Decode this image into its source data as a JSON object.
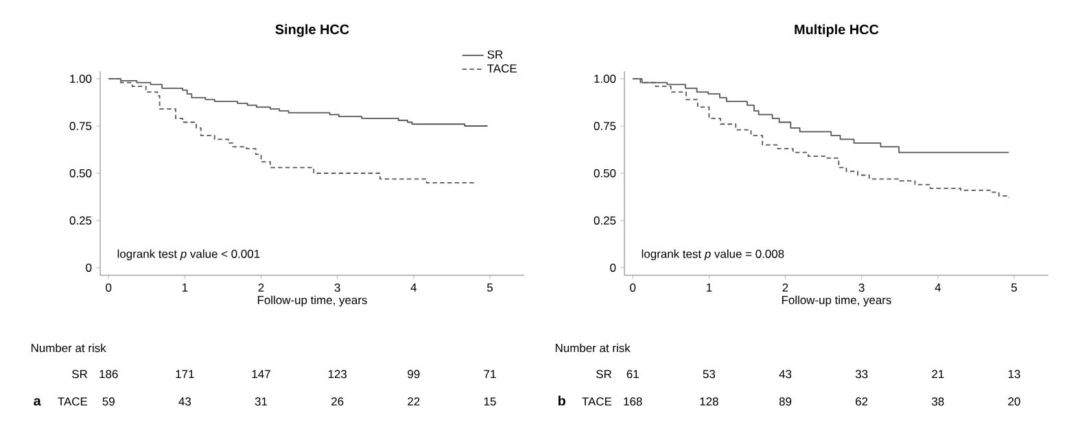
{
  "chart_data": [
    {
      "type": "step",
      "title": "Single HCC",
      "xlabel": "Follow-up time, years",
      "xlim": [
        -0.11,
        5.45
      ],
      "ylim": [
        -0.04,
        1.04
      ],
      "xticks": [
        0,
        1,
        2,
        3,
        4,
        5
      ],
      "yticks": [
        {
          "value": 1,
          "label": "1.00"
        },
        {
          "value": 0.75,
          "label": "0.75"
        },
        {
          "value": 0.5,
          "label": "0.50"
        },
        {
          "value": 0.25,
          "label": "0.25"
        },
        0
      ],
      "legend": "top right",
      "series": [
        {
          "name": "SR",
          "color": "#555555",
          "line_style": "solid",
          "x": [
            0,
            0.16,
            0.37,
            0.55,
            0.7,
            0.97,
            1.03,
            1.09,
            1.27,
            1.39,
            1.69,
            1.82,
            1.94,
            2.12,
            2.24,
            2.36,
            2.9,
            3.02,
            3.32,
            3.8,
            3.92,
            3.98,
            4.67,
            4.97
          ],
          "values": [
            1,
            0.99,
            0.98,
            0.97,
            0.95,
            0.94,
            0.92,
            0.9,
            0.89,
            0.88,
            0.87,
            0.86,
            0.85,
            0.84,
            0.83,
            0.82,
            0.81,
            0.8,
            0.79,
            0.78,
            0.77,
            0.76,
            0.75,
            0.75
          ]
        },
        {
          "name": "TACE",
          "color": "#555555",
          "line_style": "dashed",
          "x": [
            0,
            0.16,
            0.31,
            0.49,
            0.64,
            0.67,
            0.88,
            0.97,
            1.15,
            1.21,
            1.39,
            1.57,
            1.63,
            1.81,
            1.93,
            2.0,
            2.12,
            2.69,
            3.56,
            4.17,
            4.82
          ],
          "values": [
            1,
            0.98,
            0.96,
            0.93,
            0.91,
            0.84,
            0.79,
            0.77,
            0.74,
            0.7,
            0.68,
            0.66,
            0.64,
            0.63,
            0.6,
            0.56,
            0.53,
            0.5,
            0.47,
            0.45,
            0.45
          ]
        }
      ],
      "annotations": [
        "logrank test *p* value < 0.001",
        "Number at risk",
        "a",
        "SR",
        "186",
        "171",
        "147",
        "123",
        "99",
        "71",
        "TACE",
        "59",
        "43",
        "31",
        "26",
        "22",
        "15"
      ]
    },
    {
      "type": "step",
      "title": "Multiple HCC",
      "xlabel": "Follow-up time, years",
      "xlim": [
        -0.11,
        5.45
      ],
      "ylim": [
        -0.04,
        1.04
      ],
      "xticks": [
        0,
        1,
        2,
        3,
        4,
        5
      ],
      "yticks": [
        {
          "value": 1,
          "label": "1.00"
        },
        {
          "value": 0.75,
          "label": "0.75"
        },
        {
          "value": 0.5,
          "label": "0.50"
        },
        {
          "value": 0.25,
          "label": "0.25"
        },
        0
      ],
      "series": [
        {
          "color": "#555555",
          "line_style": "solid",
          "x": [
            0,
            0.12,
            0.45,
            0.69,
            0.84,
            0.99,
            1.14,
            1.23,
            1.5,
            1.59,
            1.65,
            1.83,
            1.92,
            2.07,
            2.19,
            2.6,
            2.72,
            2.9,
            3.25,
            3.49,
            4.93
          ],
          "values": [
            1,
            0.98,
            0.97,
            0.95,
            0.93,
            0.92,
            0.9,
            0.88,
            0.86,
            0.83,
            0.81,
            0.79,
            0.77,
            0.74,
            0.72,
            0.7,
            0.68,
            0.66,
            0.64,
            0.61,
            0.61
          ]
        },
        {
          "color": "#555555",
          "line_style": "dashed",
          "x": [
            0,
            0.1,
            0.3,
            0.5,
            0.7,
            0.85,
            1.0,
            1.15,
            1.35,
            1.55,
            1.7,
            1.9,
            2.1,
            2.3,
            2.55,
            2.7,
            2.8,
            2.95,
            3.1,
            3.5,
            3.7,
            3.9,
            4.3,
            4.7,
            4.8,
            4.93
          ],
          "values": [
            1,
            0.98,
            0.96,
            0.93,
            0.89,
            0.85,
            0.79,
            0.76,
            0.73,
            0.7,
            0.65,
            0.63,
            0.61,
            0.59,
            0.58,
            0.53,
            0.51,
            0.49,
            0.47,
            0.46,
            0.44,
            0.42,
            0.41,
            0.4,
            0.38,
            0.37
          ]
        }
      ],
      "annotations": [
        "logrank test *p* value = 0.008",
        "Number at risk",
        "b",
        "SR",
        "61",
        "53",
        "43",
        "33",
        "21",
        "13",
        "TACE",
        "168",
        "128",
        "89",
        "62",
        "38",
        "20"
      ]
    }
  ]
}
